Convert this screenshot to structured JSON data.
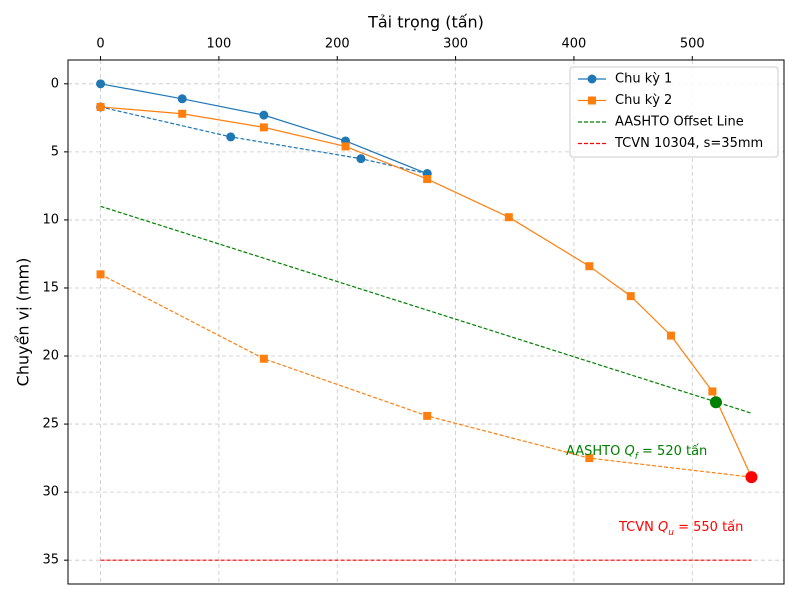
{
  "chart_data": {
    "type": "line",
    "xlabel": "Tải trọng (tấn)",
    "ylabel": "Chuyển vị (mm)",
    "xlim": [
      -27.5,
      577.5
    ],
    "ylim": [
      -1.75,
      36.75
    ],
    "y_inverted": true,
    "xticks": [
      0,
      100,
      200,
      300,
      400,
      500
    ],
    "yticks": [
      0,
      5,
      10,
      15,
      20,
      25,
      30,
      35
    ],
    "grid": true,
    "legend": "upper right",
    "series": [
      {
        "name": "Chu kỳ 1",
        "color": "#1f77b4",
        "linestyle": "solid",
        "marker": "circle",
        "x": [
          0,
          69,
          138,
          207,
          276
        ],
        "values": [
          0,
          1.1,
          2.3,
          4.2,
          6.6
        ]
      },
      {
        "color": "#1f77b4",
        "linestyle": "dashed",
        "marker": "circle",
        "x": [
          276,
          220,
          110,
          0
        ],
        "values": [
          6.6,
          5.5,
          3.9,
          1.7
        ]
      },
      {
        "name": "Chu kỳ 2",
        "color": "#ff7f0e",
        "linestyle": "solid",
        "marker": "square",
        "x": [
          0,
          69,
          138,
          207,
          276,
          345,
          413,
          448,
          482,
          517,
          550
        ],
        "values": [
          1.7,
          2.2,
          3.2,
          4.6,
          7.0,
          9.8,
          13.4,
          15.6,
          18.5,
          22.6,
          28.9
        ]
      },
      {
        "color": "#ff7f0e",
        "linestyle": "dashed",
        "marker": "square",
        "x": [
          550,
          413,
          276,
          138,
          0
        ],
        "values": [
          28.9,
          27.5,
          24.4,
          20.2,
          14.0
        ]
      },
      {
        "name": "AASHTO Offset Line",
        "color": "#008000",
        "linestyle": "dashed",
        "marker": "none",
        "x": [
          0,
          550
        ],
        "values": [
          9.0,
          24.2
        ]
      },
      {
        "name": "TCVN 10304, s=35mm",
        "color": "#ff0000",
        "linestyle": "dashed",
        "marker": "none",
        "x": [
          0,
          550
        ],
        "values": [
          35,
          35
        ]
      }
    ],
    "points": [
      {
        "x": 520,
        "y": 23.4,
        "color": "#008000"
      },
      {
        "x": 550,
        "y": 28.9,
        "color": "#ff0000"
      }
    ],
    "annotations": [
      {
        "color": "#008000",
        "parts": [
          "AASHTO ",
          "Q",
          "f",
          " = 520 tấn"
        ]
      },
      {
        "color": "#ff0000",
        "parts": [
          "TCVN ",
          "Q",
          "u",
          " = 550 tấn"
        ]
      }
    ]
  }
}
